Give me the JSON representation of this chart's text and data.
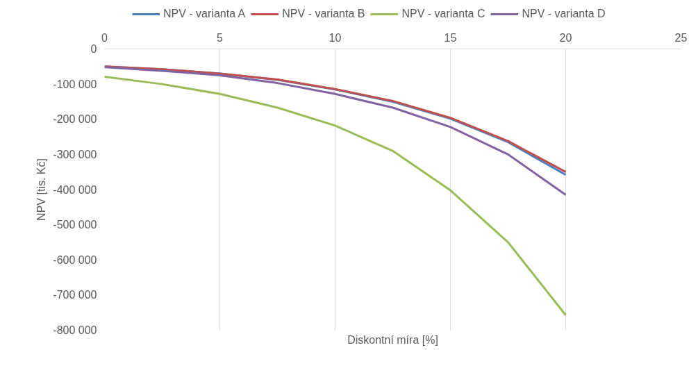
{
  "chart_data": {
    "type": "line",
    "xlabel": "Diskontní míra [%]",
    "ylabel": "NPV [tis. Kč]",
    "x": [
      0,
      2.5,
      5,
      7.5,
      10,
      12.5,
      15,
      17.5,
      20
    ],
    "series": [
      {
        "name": "NPV - varianta A",
        "color": "#4a7fc1",
        "values": [
          -50000,
          -58000,
          -70000,
          -88000,
          -115000,
          -150000,
          -198000,
          -265000,
          -358000
        ]
      },
      {
        "name": "NPV - varianta B",
        "color": "#c0504d",
        "values": [
          -50000,
          -58000,
          -70000,
          -87000,
          -114000,
          -148000,
          -196000,
          -262000,
          -350000
        ]
      },
      {
        "name": "NPV - varianta C",
        "color": "#9bbb59",
        "values": [
          -79000,
          -100000,
          -128000,
          -167000,
          -218000,
          -290000,
          -402000,
          -550000,
          -757000
        ]
      },
      {
        "name": "NPV - varianta D",
        "color": "#8064a2",
        "values": [
          -52000,
          -62000,
          -75000,
          -97000,
          -128000,
          -167000,
          -222000,
          -300000,
          -415000
        ]
      }
    ],
    "xlim": [
      0,
      25
    ],
    "xticks": [
      0,
      5,
      10,
      15,
      20,
      25
    ],
    "ylim": [
      -800000,
      0
    ],
    "yticks": [
      0,
      {
        "value": -100000,
        "label": "-100 000"
      },
      {
        "value": -200000,
        "label": "-200 000"
      },
      {
        "value": -300000,
        "label": "-300 000"
      },
      {
        "value": -400000,
        "label": "-400 000"
      },
      {
        "value": -500000,
        "label": "-500 000"
      },
      {
        "value": -600000,
        "label": "-600 000"
      },
      {
        "value": -700000,
        "label": "-700 000"
      },
      {
        "value": -800000,
        "label": "-800 000"
      }
    ],
    "grid": "x",
    "legend": "top",
    "marker": "none",
    "line_style": "solid"
  }
}
